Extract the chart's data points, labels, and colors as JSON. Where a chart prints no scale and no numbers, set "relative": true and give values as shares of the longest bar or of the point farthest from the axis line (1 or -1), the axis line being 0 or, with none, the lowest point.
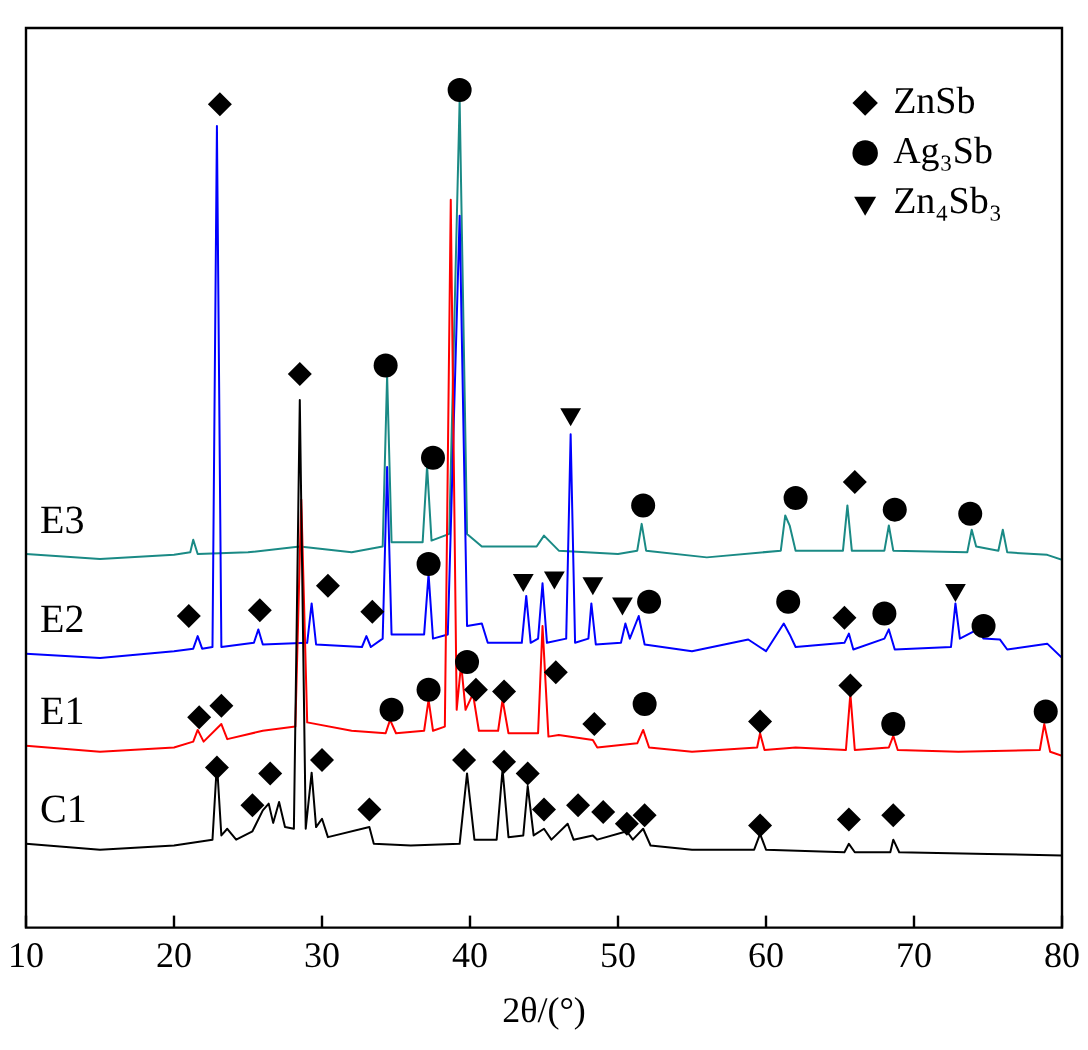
{
  "chart_data": {
    "type": "line",
    "relative": true,
    "xlabel": "2θ/(°)",
    "xlim": [
      10,
      80
    ],
    "xticks": [
      10,
      20,
      30,
      40,
      50,
      60,
      70,
      80
    ],
    "legend": "top right",
    "line_style": "solid",
    "series": [
      {
        "name": "C1",
        "color": "#000000",
        "marker": "none",
        "x": [
          10,
          15,
          20,
          22.6,
          22.9,
          23.2,
          23.6,
          24.2,
          25.3,
          26.0,
          26.4,
          26.7,
          27.1,
          27.5,
          28.1,
          28.5,
          28.9,
          29.3,
          29.6,
          30.0,
          30.4,
          33.2,
          33.5,
          36,
          39.3,
          39.8,
          40.3,
          41.8,
          42.2,
          42.6,
          43.6,
          43.9,
          44.3,
          45.0,
          45.5,
          46.6,
          47.0,
          48.3,
          48.6,
          50.6,
          51.0,
          51.7,
          52.2,
          55,
          59.2,
          59.6,
          60.0,
          65.3,
          65.6,
          66.0,
          68.4,
          68.6,
          69.0,
          75,
          80
        ],
        "values": [
          0.1,
          0.093,
          0.098,
          0.105,
          0.196,
          0.11,
          0.118,
          0.105,
          0.115,
          0.14,
          0.148,
          0.125,
          0.15,
          0.12,
          0.118,
          0.63,
          0.118,
          0.185,
          0.12,
          0.13,
          0.108,
          0.12,
          0.1,
          0.098,
          0.1,
          0.184,
          0.105,
          0.105,
          0.189,
          0.108,
          0.11,
          0.169,
          0.11,
          0.118,
          0.105,
          0.124,
          0.105,
          0.11,
          0.105,
          0.115,
          0.105,
          0.118,
          0.098,
          0.093,
          0.093,
          0.112,
          0.093,
          0.09,
          0.1,
          0.09,
          0.09,
          0.105,
          0.09,
          0.088,
          0.086
        ]
      },
      {
        "name": "E1",
        "color": "#ff0000",
        "marker": "none",
        "x": [
          10,
          15,
          20,
          21.3,
          21.6,
          22.0,
          23.2,
          23.6,
          26,
          28.2,
          28.6,
          29.0,
          32,
          34.3,
          34.6,
          35.0,
          36.9,
          37.2,
          37.5,
          38.3,
          38.7,
          39.1,
          39.4,
          39.7,
          40.2,
          40.6,
          41.9,
          42.2,
          42.6,
          44.6,
          44.9,
          45.3,
          46,
          48.3,
          48.6,
          51.3,
          51.7,
          52.1,
          55,
          59.4,
          59.6,
          59.9,
          62,
          65.4,
          65.7,
          66.0,
          68.3,
          68.6,
          68.9,
          73,
          78.5,
          78.8,
          79.2,
          80
        ],
        "values": [
          0.217,
          0.21,
          0.215,
          0.222,
          0.236,
          0.222,
          0.243,
          0.225,
          0.235,
          0.24,
          0.511,
          0.245,
          0.235,
          0.232,
          0.248,
          0.232,
          0.235,
          0.272,
          0.235,
          0.24,
          0.869,
          0.26,
          0.315,
          0.26,
          0.279,
          0.235,
          0.235,
          0.272,
          0.232,
          0.232,
          0.36,
          0.228,
          0.23,
          0.224,
          0.215,
          0.22,
          0.236,
          0.215,
          0.21,
          0.215,
          0.232,
          0.212,
          0.215,
          0.212,
          0.279,
          0.212,
          0.215,
          0.229,
          0.212,
          0.21,
          0.212,
          0.243,
          0.21,
          0.205
        ]
      },
      {
        "name": "E2",
        "color": "#0000ff",
        "marker": "none",
        "x": [
          10,
          15,
          20,
          21.3,
          21.6,
          21.9,
          22.6,
          22.9,
          23.2,
          25.4,
          25.7,
          26.0,
          29.0,
          29.3,
          29.6,
          32.7,
          33.0,
          33.3,
          34.1,
          34.4,
          34.7,
          36.9,
          37.2,
          37.5,
          38.5,
          39.3,
          39.8,
          40.8,
          41.2,
          43.5,
          43.8,
          44.1,
          44.6,
          44.9,
          45.2,
          46.5,
          46.8,
          47.1,
          48.0,
          48.2,
          48.5,
          50.2,
          50.5,
          50.8,
          51.4,
          51.8,
          55,
          58.8,
          60,
          61.2,
          61.6,
          62,
          65.3,
          65.6,
          65.9,
          68.0,
          68.3,
          68.7,
          72.5,
          72.8,
          73.1,
          74.3,
          74.7,
          75.8,
          76.3,
          79,
          80
        ],
        "values": [
          0.327,
          0.322,
          0.33,
          0.333,
          0.348,
          0.333,
          0.335,
          0.957,
          0.335,
          0.34,
          0.356,
          0.338,
          0.34,
          0.387,
          0.338,
          0.335,
          0.348,
          0.335,
          0.345,
          0.55,
          0.35,
          0.35,
          0.422,
          0.345,
          0.35,
          0.85,
          0.36,
          0.363,
          0.34,
          0.34,
          0.396,
          0.34,
          0.345,
          0.411,
          0.34,
          0.345,
          0.589,
          0.34,
          0.345,
          0.387,
          0.338,
          0.34,
          0.363,
          0.345,
          0.372,
          0.338,
          0.33,
          0.344,
          0.33,
          0.363,
          0.35,
          0.335,
          0.34,
          0.351,
          0.332,
          0.345,
          0.356,
          0.332,
          0.335,
          0.387,
          0.345,
          0.356,
          0.345,
          0.344,
          0.332,
          0.339,
          0.322
        ]
      },
      {
        "name": "E3",
        "color": "#1a8a85",
        "marker": "none",
        "x": [
          10,
          15,
          20,
          21.1,
          21.3,
          21.6,
          25,
          28.5,
          32,
          34.1,
          34.4,
          34.7,
          36.8,
          37.1,
          37.4,
          38.6,
          39.3,
          39.8,
          40.8,
          44.5,
          45,
          46,
          50,
          51.3,
          51.6,
          51.9,
          56,
          61.0,
          61.3,
          61.6,
          62.0,
          65.2,
          65.5,
          65.8,
          68.0,
          68.3,
          68.6,
          73.6,
          73.9,
          74.2,
          75.7,
          76.0,
          76.3,
          79,
          80
        ],
        "values": [
          0.446,
          0.44,
          0.445,
          0.448,
          0.463,
          0.446,
          0.448,
          0.455,
          0.448,
          0.455,
          0.659,
          0.46,
          0.46,
          0.551,
          0.462,
          0.47,
          0.988,
          0.47,
          0.455,
          0.455,
          0.468,
          0.45,
          0.446,
          0.45,
          0.482,
          0.45,
          0.442,
          0.45,
          0.492,
          0.48,
          0.45,
          0.45,
          0.504,
          0.45,
          0.45,
          0.48,
          0.45,
          0.448,
          0.475,
          0.455,
          0.45,
          0.475,
          0.448,
          0.445,
          0.439
        ]
      },
      {
        "name": "ZnSb",
        "type": "scatter",
        "color": "#000000",
        "marker": "diamond",
        "x": [
          23.1,
          28.5,
          21.0,
          25.8,
          30.4,
          33.4,
          21.7,
          23.2,
          40.4,
          42.3,
          45.8,
          22.9,
          25.3,
          26.5,
          30.0,
          33.2,
          39.6,
          42.3,
          43.9,
          45.0,
          47.3,
          49.0,
          50.6,
          51.8,
          59.6,
          65.6,
          68.6,
          48.4,
          59.6,
          65.7,
          65.3,
          66.0
        ],
        "values": [
          0.983,
          0.661,
          0.372,
          0.379,
          0.408,
          0.377,
          0.251,
          0.265,
          0.284,
          0.282,
          0.305,
          0.191,
          0.146,
          0.184,
          0.2,
          0.141,
          0.2,
          0.198,
          0.184,
          0.141,
          0.146,
          0.138,
          0.124,
          0.134,
          0.122,
          0.129,
          0.134,
          0.243,
          0.246,
          0.289,
          0.37,
          0.532
        ]
      },
      {
        "name": "Ag₃Sb",
        "type": "scatter",
        "color": "#000000",
        "marker": "circle",
        "x": [
          39.3,
          34.3,
          37.5,
          37.2,
          34.7,
          37.2,
          39.8,
          51.7,
          62.0,
          68.7,
          73.8,
          52.1,
          61.5,
          68.0,
          74.7,
          51.8,
          68.6,
          78.9
        ],
        "values": [
          1.0,
          0.671,
          0.561,
          0.434,
          0.26,
          0.284,
          0.317,
          0.504,
          0.513,
          0.499,
          0.494,
          0.389,
          0.389,
          0.375,
          0.36,
          0.267,
          0.243,
          0.258
        ]
      },
      {
        "name": "Zn₄Sb₃",
        "type": "scatter",
        "color": "#000000",
        "marker": "triangle",
        "x": [
          46.8,
          43.6,
          45.7,
          48.3,
          50.3,
          72.8
        ],
        "values": [
          0.613,
          0.415,
          0.418,
          0.411,
          0.387,
          0.403
        ]
      }
    ]
  }
}
